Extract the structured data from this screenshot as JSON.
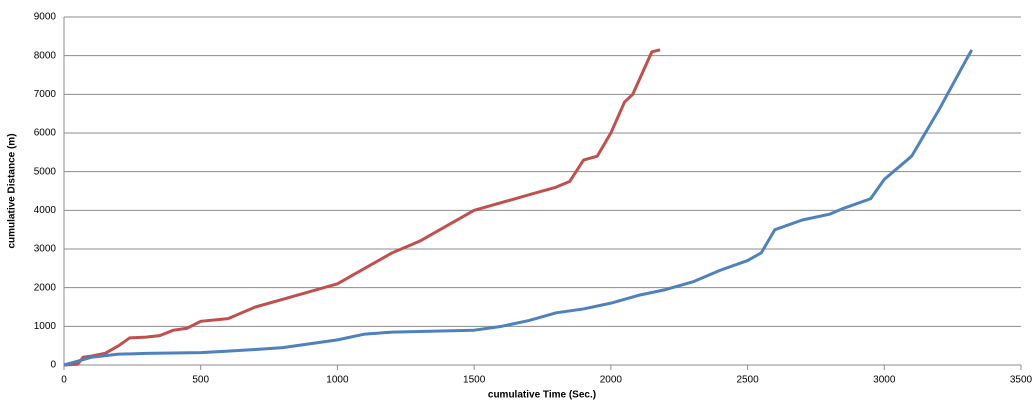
{
  "chart_data": {
    "type": "line",
    "x_label": "cumulative Time (Sec.)",
    "y_label": "cumulative Distance (m)",
    "xlim": [
      0,
      3500
    ],
    "xticks": [
      0,
      500,
      1000,
      1500,
      2000,
      2500,
      3000,
      3500
    ],
    "ylim": [
      0,
      9000
    ],
    "yticks": [
      0,
      1000,
      2000,
      3000,
      4000,
      5000,
      6000,
      7000,
      8000,
      9000
    ],
    "grid": true,
    "series": [
      {
        "color": "#c0504d",
        "x": [
          0,
          50,
          70,
          100,
          150,
          200,
          240,
          300,
          350,
          400,
          450,
          500,
          600,
          700,
          800,
          900,
          1000,
          1100,
          1200,
          1300,
          1400,
          1500,
          1600,
          1700,
          1800,
          1850,
          1900,
          1950,
          2000,
          2050,
          2080,
          2150,
          2180
        ],
        "values": [
          0,
          20,
          200,
          230,
          300,
          500,
          700,
          720,
          760,
          900,
          950,
          1130,
          1200,
          1500,
          1700,
          1900,
          2100,
          2500,
          2900,
          3200,
          3600,
          4000,
          4200,
          4400,
          4600,
          4750,
          5300,
          5400,
          6000,
          6800,
          7000,
          8100,
          8150
        ]
      },
      {
        "color": "#4f81bd",
        "x": [
          0,
          50,
          100,
          200,
          300,
          500,
          600,
          700,
          800,
          900,
          1000,
          1100,
          1200,
          1500,
          1600,
          1700,
          1800,
          1900,
          2000,
          2100,
          2200,
          2300,
          2400,
          2500,
          2550,
          2600,
          2700,
          2800,
          2850,
          2950,
          3000,
          3050,
          3100,
          3200,
          3300,
          3320
        ],
        "values": [
          0,
          100,
          200,
          280,
          300,
          320,
          360,
          400,
          450,
          550,
          650,
          800,
          850,
          900,
          1000,
          1150,
          1350,
          1450,
          1600,
          1800,
          1950,
          2150,
          2450,
          2700,
          2900,
          3500,
          3750,
          3900,
          4050,
          4300,
          4800,
          5100,
          5400,
          6600,
          7900,
          8150
        ]
      }
    ]
  }
}
